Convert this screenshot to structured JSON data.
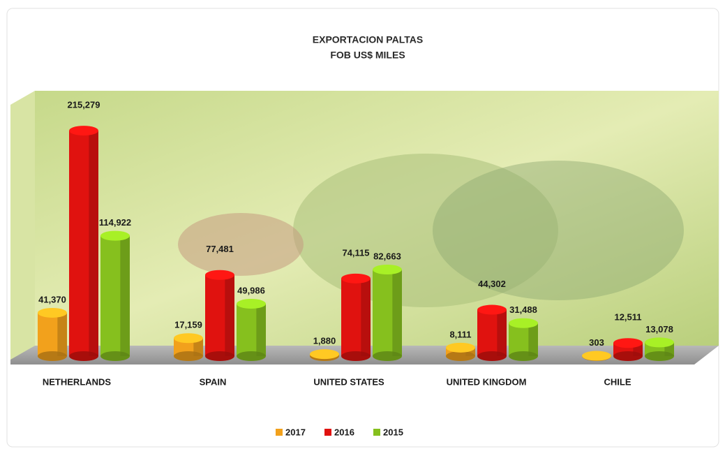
{
  "chart_data": {
    "type": "bar",
    "title": "EXPORTACION PALTAS",
    "subtitle": "FOB US$ MILES",
    "categories": [
      "NETHERLANDS",
      "SPAIN",
      "UNITED STATES",
      "UNITED KINGDOM",
      "CHILE"
    ],
    "series": [
      {
        "name": "2017",
        "color": "#f2a11c",
        "values": [
          41370,
          17159,
          1880,
          8111,
          303
        ],
        "value_labels": [
          "41,370",
          "17,159",
          "1,880",
          "8,111",
          "303"
        ]
      },
      {
        "name": "2016",
        "color": "#e0120f",
        "values": [
          215279,
          77481,
          74115,
          44302,
          12511
        ],
        "value_labels": [
          "215,279",
          "77,481",
          "74,115",
          "44,302",
          "12,511"
        ]
      },
      {
        "name": "2015",
        "color": "#86c01e",
        "values": [
          114922,
          49986,
          82663,
          31488,
          13078
        ],
        "value_labels": [
          "114,922",
          "49,986",
          "82,663",
          "31,488",
          "13,078"
        ]
      }
    ],
    "ylim": [
      0,
      250000
    ],
    "legend": "bottom"
  }
}
